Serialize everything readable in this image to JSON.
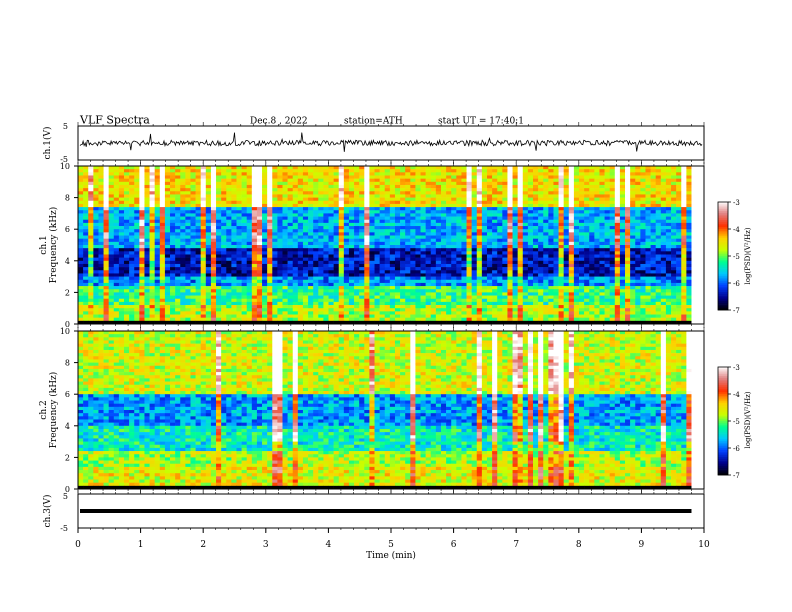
{
  "header": {
    "title": "VLF Spectra",
    "date": "Dec.8 , 2022",
    "station": "station=ATH",
    "start_ut": "start UT = 17:40:1"
  },
  "chart_data": [
    {
      "type": "line",
      "title": "",
      "ylabel": "ch.1(V)",
      "ylim": [
        -5,
        5
      ],
      "yticks": [
        "5",
        "-5"
      ],
      "xlim": [
        0,
        10
      ],
      "baseline": 0,
      "noise_amplitude": 0.8,
      "line_color": "#000000"
    },
    {
      "type": "heatmap",
      "channel_label": "ch.1",
      "ylabel": "Frequency (kHz)",
      "ylim": [
        0,
        10
      ],
      "yticks": [
        "0",
        "2",
        "4",
        "6",
        "8",
        "10"
      ],
      "xlim": [
        0,
        9.8
      ],
      "colorbar": {
        "label": "log(PSD)(V²/Hz)",
        "range": [
          -7,
          -3
        ],
        "ticks": [
          "-3",
          "-4",
          "-5",
          "-6",
          "-7"
        ],
        "colors": [
          "#000000",
          "#00008b",
          "#0040ff",
          "#00c8ff",
          "#00ff90",
          "#c8ff00",
          "#ffd000",
          "#ff3000",
          "#e08080",
          "#ffffff"
        ]
      },
      "bands_khz": [
        {
          "from": 0,
          "to": 0.2,
          "level": 0
        },
        {
          "from": 0.2,
          "to": 1.2,
          "level": 0.55
        },
        {
          "from": 1.2,
          "to": 2.4,
          "level": 0.45
        },
        {
          "from": 2.4,
          "to": 3.0,
          "level": 0.28
        },
        {
          "from": 3.0,
          "to": 4.8,
          "level": 0.15
        },
        {
          "from": 4.8,
          "to": 7.5,
          "level": 0.32
        },
        {
          "from": 7.5,
          "to": 10,
          "level": 0.62
        }
      ]
    },
    {
      "type": "heatmap",
      "channel_label": "ch.2",
      "ylabel": "Frequency (kHz)",
      "ylim": [
        0,
        10
      ],
      "yticks": [
        "0",
        "2",
        "4",
        "6",
        "8",
        "10"
      ],
      "xlim": [
        0,
        9.8
      ],
      "colorbar": {
        "label": "log(PSD)(V²/Hz)",
        "range": [
          -7,
          -3
        ],
        "ticks": [
          "-3",
          "-4",
          "-5",
          "-6",
          "-7"
        ],
        "colors": [
          "#000000",
          "#00008b",
          "#0040ff",
          "#00c8ff",
          "#00ff90",
          "#c8ff00",
          "#ffd000",
          "#ff3000",
          "#e08080",
          "#ffffff"
        ]
      },
      "bands_khz": [
        {
          "from": 0,
          "to": 0.2,
          "level": 0
        },
        {
          "from": 0.2,
          "to": 1.5,
          "level": 0.6
        },
        {
          "from": 1.5,
          "to": 2.5,
          "level": 0.55
        },
        {
          "from": 2.5,
          "to": 4.0,
          "level": 0.4
        },
        {
          "from": 4.0,
          "to": 6.0,
          "level": 0.3
        },
        {
          "from": 6.0,
          "to": 10,
          "level": 0.58
        }
      ]
    },
    {
      "type": "line",
      "title": "",
      "ylabel": "ch.3(V)",
      "ylim": [
        -5,
        5
      ],
      "yticks": [
        "5",
        "-5"
      ],
      "xlim": [
        0,
        9.8
      ],
      "baseline": 0,
      "noise_amplitude": 0.0,
      "line_color": "#000000"
    }
  ],
  "x_axis": {
    "label": "Time (min)",
    "range": [
      0,
      10
    ],
    "ticks": [
      "0",
      "1",
      "2",
      "3",
      "4",
      "5",
      "6",
      "7",
      "8",
      "9",
      "10"
    ]
  }
}
